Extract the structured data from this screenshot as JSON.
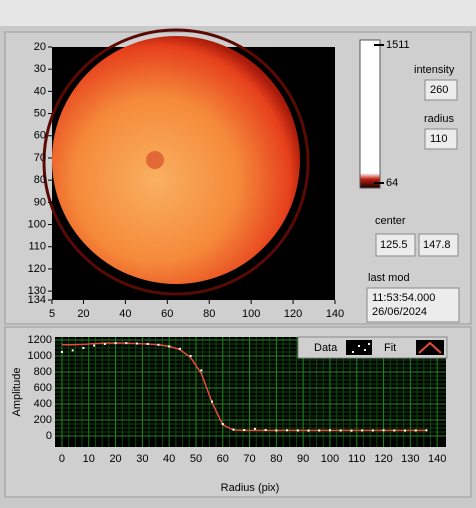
{
  "image_graph": {
    "xlim": [
      5,
      140
    ],
    "xticks": [
      5,
      20,
      40,
      60,
      80,
      100,
      120,
      140
    ],
    "ylim": [
      20,
      134
    ],
    "yticks": [
      20,
      30,
      40,
      50,
      60,
      70,
      80,
      90,
      100,
      110,
      120,
      130,
      134
    ]
  },
  "colorbar": {
    "max": 1511,
    "min": 64
  },
  "intensity": {
    "label": "intensity",
    "value": 260
  },
  "radius": {
    "label": "radius",
    "value": 110
  },
  "center": {
    "label": "center",
    "values": [
      125.5,
      147.8
    ]
  },
  "last_mod": {
    "label": "last mod",
    "time": "11:53:54.000",
    "date": "26/06/2024"
  },
  "chart_data": {
    "type": "line",
    "x_label": "Radius (pix)",
    "y_label": "Amplitude",
    "x": [
      0,
      4,
      8,
      12,
      16,
      20,
      24,
      28,
      32,
      36,
      40,
      44,
      48,
      52,
      56,
      60,
      64,
      68,
      72,
      76,
      80,
      84,
      88,
      92,
      96,
      100,
      104,
      108,
      112,
      116,
      120,
      124,
      128,
      132,
      136
    ],
    "series": [
      {
        "name": "Data",
        "color": "#ffffff",
        "values": [
          1050,
          1070,
          1100,
          1130,
          1150,
          1160,
          1160,
          1155,
          1150,
          1140,
          1120,
          1090,
          1000,
          820,
          430,
          150,
          80,
          75,
          90,
          75,
          70,
          72,
          70,
          68,
          70,
          72,
          70,
          68,
          70,
          70,
          72,
          70,
          68,
          70,
          72
        ]
      },
      {
        "name": "Fit",
        "color": "#e84a3a",
        "values": [
          1140,
          1140,
          1145,
          1155,
          1160,
          1160,
          1160,
          1155,
          1150,
          1140,
          1120,
          1080,
          980,
          780,
          420,
          140,
          75,
          70,
          70,
          70,
          70,
          70,
          70,
          70,
          70,
          70,
          70,
          70,
          70,
          70,
          70,
          70,
          70,
          70,
          70
        ]
      }
    ],
    "xlim": [
      -2.6,
      143.3
    ],
    "xticks": [
      0,
      10,
      20,
      30,
      40,
      50,
      60,
      70,
      80,
      90,
      100,
      110,
      120,
      130,
      140
    ],
    "ylim": [
      -137,
      1237
    ],
    "yticks": [
      0,
      200,
      400,
      600,
      800,
      1000,
      1200
    ],
    "grid": true
  }
}
